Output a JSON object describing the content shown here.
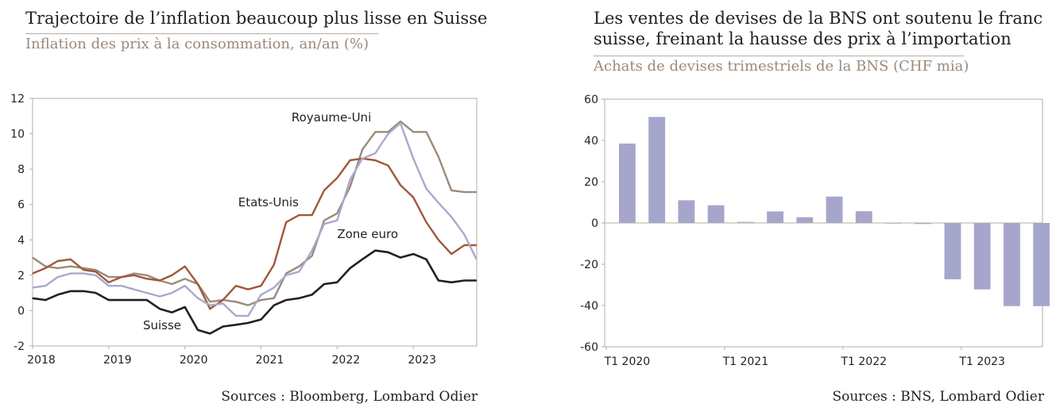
{
  "left": {
    "title": "Trajectoire de l’inflation beaucoup plus lisse en Suisse",
    "subtitle": "Inflation des prix à la consommation, an/an (%)",
    "source": "Sources : Bloomberg, Lombard Odier",
    "colors": {
      "ch": "#231f20",
      "us": "#a0583a",
      "uk": "#9b8a78",
      "ez": "#a9a9cc",
      "axis": "#b5aca5"
    },
    "chart_data": {
      "type": "line",
      "title": "Trajectoire de l’inflation beaucoup plus lisse en Suisse",
      "ylabel": "Inflation des prix à la consommation, an/an (%)",
      "xlim": [
        2018.0,
        2023.833
      ],
      "ylim": [
        -2,
        12
      ],
      "yticks": [
        -2,
        0,
        2,
        4,
        6,
        8,
        10,
        12
      ],
      "xticks": [
        2018,
        2019,
        2020,
        2021,
        2022,
        2023
      ],
      "grid": false,
      "series": [
        {
          "name": "Royaume-Uni",
          "key": "uk",
          "label_x": 2021.4,
          "label_y": 10.7,
          "x": [
            2018.0,
            2018.17,
            2018.33,
            2018.5,
            2018.67,
            2018.83,
            2019.0,
            2019.17,
            2019.33,
            2019.5,
            2019.67,
            2019.83,
            2020.0,
            2020.17,
            2020.33,
            2020.5,
            2020.67,
            2020.83,
            2021.0,
            2021.17,
            2021.33,
            2021.5,
            2021.67,
            2021.83,
            2022.0,
            2022.17,
            2022.33,
            2022.5,
            2022.67,
            2022.83,
            2023.0,
            2023.17,
            2023.33,
            2023.5,
            2023.67,
            2023.83
          ],
          "y": [
            3.0,
            2.5,
            2.4,
            2.5,
            2.4,
            2.3,
            1.9,
            1.9,
            2.1,
            2.0,
            1.7,
            1.5,
            1.8,
            1.5,
            0.5,
            0.6,
            0.5,
            0.3,
            0.6,
            0.7,
            2.1,
            2.5,
            3.1,
            5.1,
            5.5,
            7.0,
            9.1,
            10.1,
            10.1,
            10.7,
            10.1,
            10.1,
            8.7,
            6.8,
            6.7,
            6.7
          ]
        },
        {
          "name": "Etats-Unis",
          "key": "us",
          "label_x": 2020.7,
          "label_y": 5.9,
          "x": [
            2018.0,
            2018.17,
            2018.33,
            2018.5,
            2018.67,
            2018.83,
            2019.0,
            2019.17,
            2019.33,
            2019.5,
            2019.67,
            2019.83,
            2020.0,
            2020.17,
            2020.33,
            2020.5,
            2020.67,
            2020.83,
            2021.0,
            2021.17,
            2021.33,
            2021.5,
            2021.67,
            2021.83,
            2022.0,
            2022.17,
            2022.33,
            2022.5,
            2022.67,
            2022.83,
            2023.0,
            2023.17,
            2023.33,
            2023.5,
            2023.67,
            2023.83
          ],
          "y": [
            2.1,
            2.4,
            2.8,
            2.9,
            2.3,
            2.2,
            1.6,
            1.9,
            2.0,
            1.8,
            1.7,
            2.0,
            2.5,
            1.5,
            0.1,
            0.6,
            1.4,
            1.2,
            1.4,
            2.6,
            5.0,
            5.4,
            5.4,
            6.8,
            7.5,
            8.5,
            8.6,
            8.5,
            8.2,
            7.1,
            6.4,
            5.0,
            4.0,
            3.2,
            3.7,
            3.7
          ]
        },
        {
          "name": "Zone euro",
          "key": "ez",
          "label_x": 2022.0,
          "label_y": 4.1,
          "x": [
            2018.0,
            2018.17,
            2018.33,
            2018.5,
            2018.67,
            2018.83,
            2019.0,
            2019.17,
            2019.33,
            2019.5,
            2019.67,
            2019.83,
            2020.0,
            2020.17,
            2020.33,
            2020.5,
            2020.67,
            2020.83,
            2021.0,
            2021.17,
            2021.33,
            2021.5,
            2021.67,
            2021.83,
            2022.0,
            2022.17,
            2022.33,
            2022.5,
            2022.67,
            2022.83,
            2023.0,
            2023.17,
            2023.33,
            2023.5,
            2023.67,
            2023.83
          ],
          "y": [
            1.3,
            1.4,
            1.9,
            2.1,
            2.1,
            2.0,
            1.4,
            1.4,
            1.2,
            1.0,
            0.8,
            1.0,
            1.4,
            0.7,
            0.3,
            0.4,
            -0.3,
            -0.3,
            0.9,
            1.3,
            2.0,
            2.2,
            3.4,
            4.9,
            5.1,
            7.4,
            8.6,
            8.9,
            10.0,
            10.6,
            8.6,
            6.9,
            6.1,
            5.3,
            4.3,
            2.9
          ]
        },
        {
          "name": "Suisse",
          "key": "ch",
          "label_x": 2019.45,
          "label_y": -1.05,
          "x": [
            2018.0,
            2018.17,
            2018.33,
            2018.5,
            2018.67,
            2018.83,
            2019.0,
            2019.17,
            2019.33,
            2019.5,
            2019.67,
            2019.83,
            2020.0,
            2020.17,
            2020.33,
            2020.5,
            2020.67,
            2020.83,
            2021.0,
            2021.17,
            2021.33,
            2021.5,
            2021.67,
            2021.83,
            2022.0,
            2022.17,
            2022.33,
            2022.5,
            2022.67,
            2022.83,
            2023.0,
            2023.17,
            2023.33,
            2023.5,
            2023.67,
            2023.83
          ],
          "y": [
            0.7,
            0.6,
            0.9,
            1.1,
            1.1,
            1.0,
            0.6,
            0.6,
            0.6,
            0.6,
            0.1,
            -0.1,
            0.2,
            -1.1,
            -1.3,
            -0.9,
            -0.8,
            -0.7,
            -0.5,
            0.3,
            0.6,
            0.7,
            0.9,
            1.5,
            1.6,
            2.4,
            2.9,
            3.4,
            3.3,
            3.0,
            3.2,
            2.9,
            1.7,
            1.6,
            1.7,
            1.7
          ]
        }
      ]
    }
  },
  "right": {
    "title_line1": "Les ventes de devises de la BNS ont soutenu le franc",
    "title_line2": "suisse, freinant la hausse des prix à l’importation",
    "subtitle": "Achats de devises trimestriels de la BNS (CHF mia)",
    "source": "Sources : BNS, Lombard Odier",
    "colors": {
      "bar": "#a6a6cc",
      "axis": "#b5aca5"
    },
    "chart_data": {
      "type": "bar",
      "title": "Les ventes de devises de la BNS ont soutenu le franc suisse, freinant la hausse des prix à l’importation",
      "ylabel": "Achats de devises trimestriels de la BNS (CHF mia)",
      "ylim": [
        -60,
        60
      ],
      "yticks": [
        -60,
        -40,
        -20,
        0,
        20,
        40,
        60
      ],
      "categories": [
        "T1 2020",
        "T2 2020",
        "T3 2020",
        "T4 2020",
        "T1 2021",
        "T2 2021",
        "T3 2021",
        "T4 2021",
        "T1 2022",
        "T2 2022",
        "T3 2022",
        "T4 2022",
        "T1 2023",
        "T2 2023",
        "T3 2023"
      ],
      "xtick_labels": [
        "T1 2020",
        "",
        "",
        "",
        "T1 2021",
        "",
        "",
        "",
        "T1 2022",
        "",
        "",
        "",
        "T1 2023",
        "",
        ""
      ],
      "values": [
        38.5,
        51.4,
        11.0,
        8.6,
        0.5,
        5.6,
        2.8,
        12.8,
        5.7,
        0.0,
        -0.5,
        -27.3,
        -32.2,
        -40.3,
        -40.3
      ],
      "grid": false
    }
  }
}
